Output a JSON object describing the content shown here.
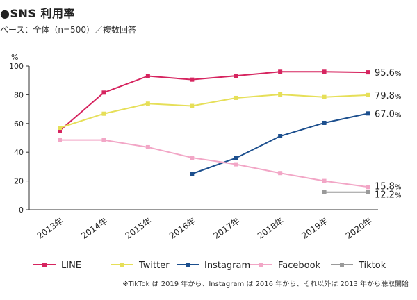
{
  "title": "●SNS 利用率",
  "subtitle": "ベース：全体（n=500）／複数回答",
  "note": "※TikTok は 2019 年から、Instagram は 2016 年から、それ以外は 2013 年から聴取開始",
  "colors": {
    "LINE": "#d6245f",
    "Twitter": "#e6df58",
    "Instagram": "#1c4f8e",
    "Facebook": "#f2a6c6",
    "Tiktok": "#9a9a9a",
    "axis": "#333333"
  },
  "chart_data": {
    "type": "line",
    "title": "●SNS 利用率",
    "subtitle": "ベース：全体（n=500）／複数回答",
    "ylabel": "%",
    "xlabel": "",
    "ylim": [
      0,
      100
    ],
    "yticks": [
      0,
      20,
      40,
      60,
      80,
      100
    ],
    "x": [
      "2013年",
      "2014年",
      "2015年",
      "2016年",
      "2017年",
      "2018年",
      "2019年",
      "2020年"
    ],
    "grid": false,
    "legend_placement": "bottom",
    "series": [
      {
        "name": "LINE",
        "values": [
          55,
          81.5,
          93,
          90.5,
          93.2,
          96,
          96,
          95.6
        ],
        "end_label": {
          "number": "95.6",
          "unit": "%"
        }
      },
      {
        "name": "Twitter",
        "values": [
          57,
          66.8,
          73.8,
          72.2,
          77.8,
          80.2,
          78.4,
          79.8
        ],
        "end_label": {
          "number": "79.8",
          "unit": "%"
        }
      },
      {
        "name": "Instagram",
        "values": [
          null,
          null,
          null,
          25,
          36,
          51.2,
          60.4,
          67.0
        ],
        "end_label": {
          "number": "67.0",
          "unit": "%"
        }
      },
      {
        "name": "Facebook",
        "values": [
          48.5,
          48.5,
          43.5,
          36.2,
          31.6,
          25.5,
          20,
          15.8
        ],
        "end_label": {
          "number": "15.8",
          "unit": "%"
        }
      },
      {
        "name": "Tiktok",
        "values": [
          null,
          null,
          null,
          null,
          null,
          null,
          12.2,
          12.2
        ],
        "end_label": {
          "number": "12.2",
          "unit": "%"
        }
      }
    ]
  }
}
